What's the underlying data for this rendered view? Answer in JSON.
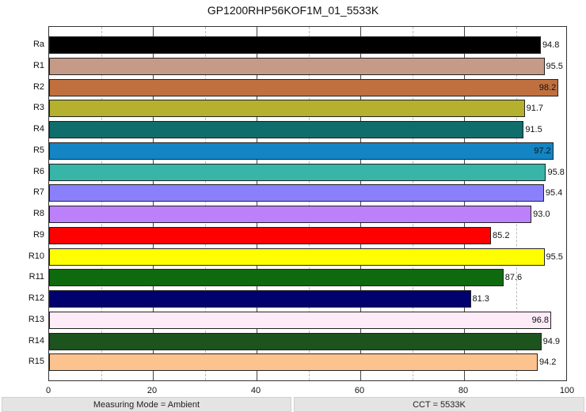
{
  "chart_data": {
    "type": "bar",
    "orientation": "horizontal",
    "title": "GP1200RHP56KOF1M_01_5533K",
    "xlabel": "",
    "ylabel": "",
    "xlim": [
      0,
      100
    ],
    "xticks": [
      0,
      20,
      40,
      60,
      80,
      100
    ],
    "grid": {
      "major": [
        20,
        40,
        60,
        80
      ],
      "minor": [
        10,
        30,
        50,
        70,
        90
      ]
    },
    "categories": [
      "Ra",
      "R1",
      "R2",
      "R3",
      "R4",
      "R5",
      "R6",
      "R7",
      "R8",
      "R9",
      "R10",
      "R11",
      "R12",
      "R13",
      "R14",
      "R15"
    ],
    "values": [
      94.8,
      95.5,
      98.2,
      91.7,
      91.5,
      97.2,
      95.8,
      95.4,
      93.0,
      85.2,
      95.5,
      87.6,
      81.3,
      96.8,
      94.9,
      94.2
    ],
    "value_labels": [
      "94.8",
      "95.5",
      "98.2",
      "91.7",
      "91.5",
      "97.2",
      "95.8",
      "95.4",
      "93.0",
      "85.2",
      "95.5",
      "87.6",
      "81.3",
      "96.8",
      "94.9",
      "94.2"
    ],
    "colors": [
      "#000000",
      "#c59a86",
      "#c0703e",
      "#b5b02e",
      "#0f6e6b",
      "#1385c4",
      "#36b5a8",
      "#8a80fc",
      "#bd80fb",
      "#fe0000",
      "#fefe00",
      "#0f6a0f",
      "#00006e",
      "#fdebf8",
      "#1d531d",
      "#fdc38e"
    ],
    "label_inside": [
      false,
      false,
      true,
      false,
      false,
      true,
      false,
      false,
      false,
      false,
      false,
      false,
      false,
      true,
      false,
      false
    ]
  },
  "footer": {
    "left": "Measuring Mode = Ambient",
    "right": "CCT = 5533K"
  }
}
